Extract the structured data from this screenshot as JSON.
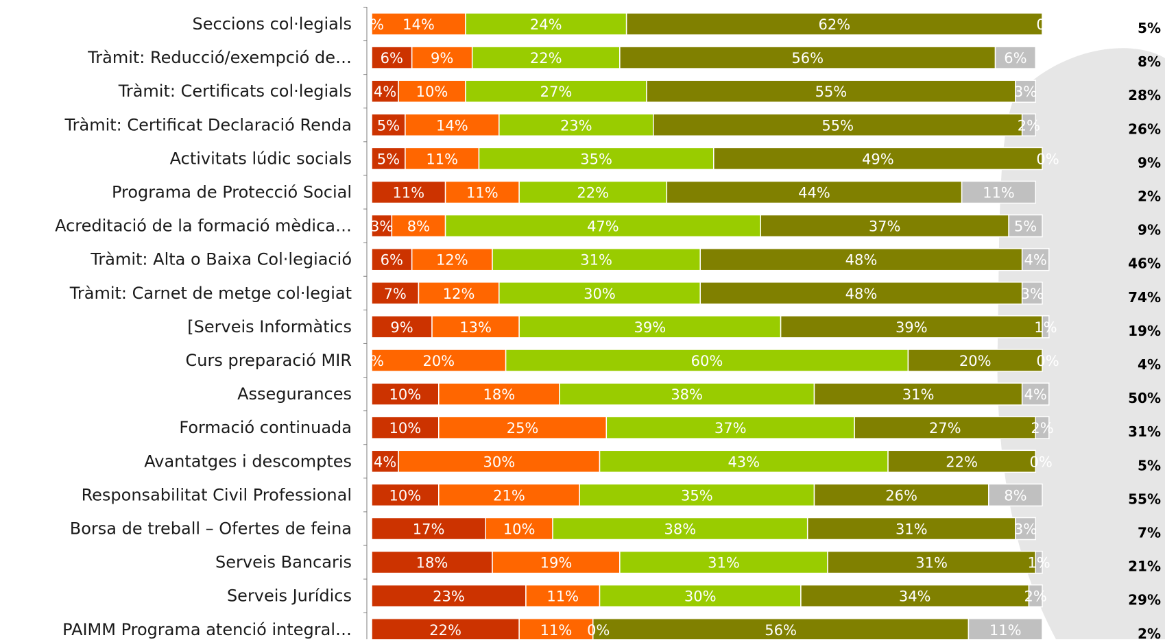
{
  "chart_data": {
    "type": "bar",
    "orientation": "horizontal",
    "stacked": true,
    "percent_stacked": true,
    "xlim": [
      0,
      100
    ],
    "grid": false,
    "legend": "none",
    "categories": [
      "Seccions col·legials",
      "Tràmit: Reducció/exempció de…",
      "Tràmit: Certificats col·legials",
      "Tràmit: Certificat Declaració Renda",
      "Activitats lúdic socials",
      "Programa de Protecció Social",
      "Acreditació de la formació mèdica…",
      "Tràmit:  Alta o Baixa Col·legiació",
      "Tràmit: Carnet de metge col·legiat",
      "[Serveis Informàtics",
      "Curs preparació MIR",
      "Assegurances",
      "Formació continuada",
      "Avantatges i descomptes",
      "Responsabilitat Civil Professional",
      "Borsa de treball – Ofertes de feina",
      "Serveis Bancaris",
      "Serveis Jurídics",
      "PAIMM Programa atenció integral…"
    ],
    "series": [
      {
        "color": "#cc3300",
        "values": [
          0,
          6,
          4,
          5,
          5,
          11,
          3,
          6,
          7,
          9,
          0,
          10,
          10,
          4,
          10,
          17,
          18,
          23,
          22
        ],
        "labels": [
          "%",
          "6%",
          "4%",
          "5%",
          "5%",
          "11%",
          "3%",
          "6%",
          "7%",
          "9%",
          "%",
          "10%",
          "10%",
          "4%",
          "10%",
          "17%",
          "18%",
          "23%",
          "22%"
        ]
      },
      {
        "color": "#ff6600",
        "values": [
          14,
          9,
          10,
          14,
          11,
          11,
          8,
          12,
          12,
          13,
          20,
          18,
          25,
          30,
          21,
          10,
          19,
          11,
          11
        ],
        "labels": [
          "14%",
          "9%",
          "10%",
          "14%",
          "11%",
          "11%",
          "8%",
          "12%",
          "12%",
          "13%",
          "20%",
          "18%",
          "25%",
          "30%",
          "21%",
          "10%",
          "19%",
          "11%",
          "11%"
        ]
      },
      {
        "color": "#99cc00",
        "values": [
          24,
          22,
          27,
          23,
          35,
          22,
          47,
          31,
          30,
          39,
          60,
          38,
          37,
          43,
          35,
          38,
          31,
          30,
          0
        ],
        "labels": [
          "24%",
          "22%",
          "27%",
          "23%",
          "35%",
          "22%",
          "47%",
          "31%",
          "30%",
          "39%",
          "60%",
          "38%",
          "37%",
          "43%",
          "35%",
          "38%",
          "31%",
          "30%",
          "0%"
        ]
      },
      {
        "color": "#808000",
        "values": [
          62,
          56,
          55,
          55,
          49,
          44,
          37,
          48,
          48,
          39,
          20,
          31,
          27,
          22,
          26,
          31,
          31,
          34,
          56
        ],
        "labels": [
          "62%",
          "56%",
          "55%",
          "55%",
          "49%",
          "44%",
          "37%",
          "48%",
          "48%",
          "39%",
          "20%",
          "31%",
          "27%",
          "22%",
          "26%",
          "31%",
          "31%",
          "34%",
          "56%"
        ]
      },
      {
        "color": "#c0c0c0",
        "values": [
          0,
          6,
          3,
          2,
          0,
          11,
          5,
          4,
          3,
          1,
          0,
          4,
          2,
          0,
          8,
          3,
          1,
          2,
          11
        ],
        "labels": [
          "0%",
          "6%",
          "3%",
          "2%",
          "0%",
          "11%",
          "5%",
          "4%",
          "3%",
          "1%",
          "0%",
          "4%",
          "2%",
          "0%",
          "8%",
          "3%",
          "1%",
          "2%",
          "11%"
        ]
      }
    ],
    "right_labels": [
      "5%",
      "8%",
      "28%",
      "26%",
      "9%",
      "2%",
      "9%",
      "46%",
      "74%",
      "19%",
      "4%",
      "50%",
      "31%",
      "5%",
      "55%",
      "7%",
      "21%",
      "29%",
      "2%"
    ],
    "label_color": "#ffffff",
    "category_label_color": "#1a1a1a",
    "right_label_color": "#000000",
    "decoration_color": "#e6e6e6"
  }
}
